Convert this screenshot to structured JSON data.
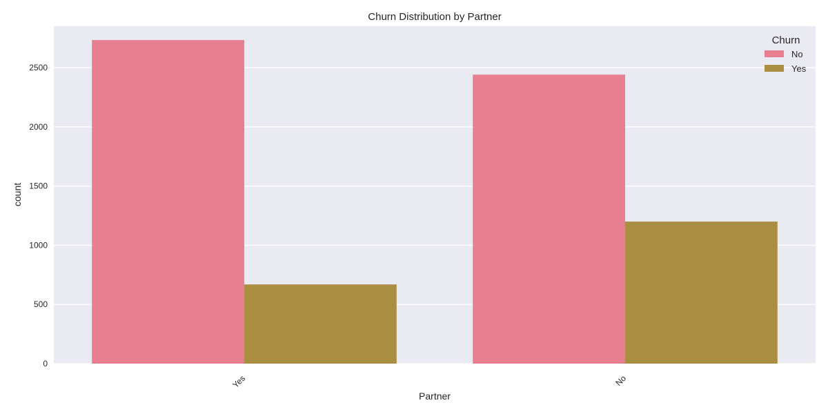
{
  "chart_data": {
    "type": "bar",
    "title": "Churn Distribution by Partner",
    "xlabel": "Partner",
    "ylabel": "count",
    "categories": [
      "Yes",
      "No"
    ],
    "series": [
      {
        "name": "No",
        "values": [
          2733,
          2441
        ]
      },
      {
        "name": "Yes",
        "values": [
          669,
          1200
        ]
      }
    ],
    "ylim": [
      0,
      2850
    ],
    "yticks": [
      0,
      500,
      1000,
      1500,
      2000,
      2500
    ],
    "grid": true,
    "legend": {
      "title": "Churn",
      "placement": "top-right"
    },
    "colors": {
      "No": "#e87f91",
      "Yes": "#aa8e42",
      "background": "#eaeaf2",
      "grid": "#ffffff"
    }
  }
}
